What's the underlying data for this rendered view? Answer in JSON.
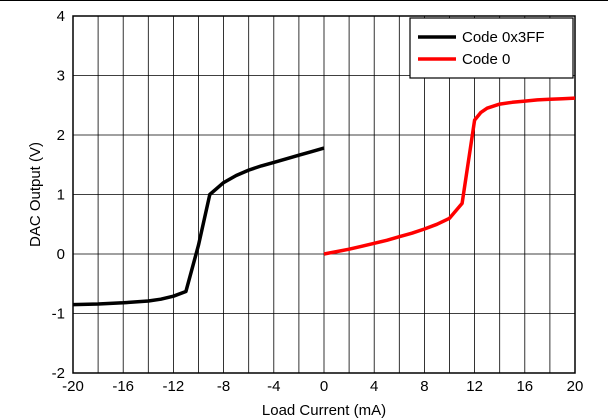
{
  "chart_data": {
    "type": "line",
    "title": "",
    "xlabel": "Load Current (mA)",
    "ylabel": "DAC Output (V)",
    "xlim": [
      -20,
      20
    ],
    "ylim": [
      -2,
      4
    ],
    "xticks": [
      -20,
      -16,
      -12,
      -8,
      -4,
      0,
      4,
      8,
      12,
      16,
      20
    ],
    "xtick_labels": [
      "-20",
      "-16",
      "-12",
      "-8",
      "-4",
      "0",
      "4",
      "8",
      "12",
      "16",
      "20"
    ],
    "yticks": [
      -2,
      -1,
      0,
      1,
      2,
      3,
      4
    ],
    "ytick_labels": [
      "-2",
      "-1",
      "0",
      "1",
      "2",
      "3",
      "4"
    ],
    "x_minor_grid": [
      -18,
      -14,
      -10,
      -6,
      -2,
      2,
      6,
      10,
      14,
      18
    ],
    "grid": true,
    "legend": {
      "placement": "top-right"
    },
    "series": [
      {
        "name": "Code 0x3FF",
        "color": "#000000",
        "points": [
          [
            -20,
            -0.85
          ],
          [
            -18,
            -0.84
          ],
          [
            -16,
            -0.82
          ],
          [
            -14,
            -0.79
          ],
          [
            -13,
            -0.76
          ],
          [
            -12,
            -0.71
          ],
          [
            -11,
            -0.63
          ],
          [
            -10,
            0.15
          ],
          [
            -9.1,
            1.0
          ],
          [
            -8,
            1.2
          ],
          [
            -7,
            1.32
          ],
          [
            -6,
            1.41
          ],
          [
            -5,
            1.48
          ],
          [
            -4,
            1.54
          ],
          [
            -3,
            1.6
          ],
          [
            -2,
            1.66
          ],
          [
            -1,
            1.72
          ],
          [
            0,
            1.78
          ]
        ]
      },
      {
        "name": "Code 0",
        "color": "#ff0000",
        "points": [
          [
            0,
            0.0
          ],
          [
            1,
            0.04
          ],
          [
            2,
            0.08
          ],
          [
            3,
            0.13
          ],
          [
            4,
            0.18
          ],
          [
            5,
            0.23
          ],
          [
            6,
            0.29
          ],
          [
            7,
            0.35
          ],
          [
            8,
            0.42
          ],
          [
            9,
            0.5
          ],
          [
            10,
            0.6
          ],
          [
            11,
            0.85
          ],
          [
            12,
            2.25
          ],
          [
            12.5,
            2.38
          ],
          [
            13,
            2.45
          ],
          [
            14,
            2.52
          ],
          [
            15,
            2.55
          ],
          [
            16,
            2.57
          ],
          [
            17,
            2.59
          ],
          [
            18,
            2.6
          ],
          [
            19,
            2.61
          ],
          [
            20,
            2.62
          ]
        ]
      }
    ]
  }
}
